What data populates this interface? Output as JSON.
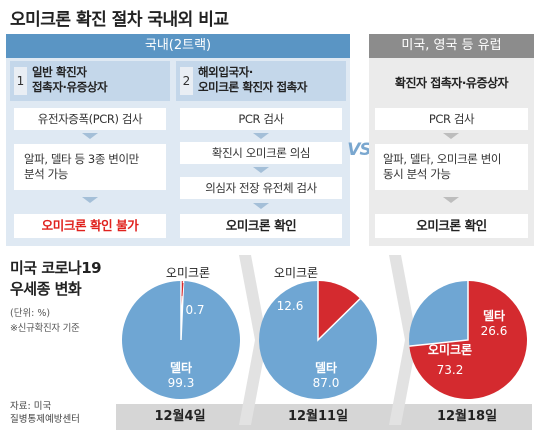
{
  "title": "오미크론 확진 절차 국내외 비교",
  "domestic": {
    "header": "국내(2트랙)",
    "track1": {
      "num": "1",
      "label": "일반 확진자\n접촉자·유증상자"
    },
    "track2": {
      "num": "2",
      "label": "해외입국자·\n오미크론 확진자 접촉자"
    },
    "t1_step1": "유전자증폭(PCR) 검사",
    "t1_step2": "알파, 델타 등 3종 변이만\n분석 가능",
    "t1_result": "오미크론 확인 불가",
    "t2_step1": "PCR 검사",
    "t2_step2": "확진시 오미크론 의심",
    "t2_step3": "의심자 전장 유전체 검사",
    "t2_result": "오미크론 확인"
  },
  "vs": "VS",
  "foreign": {
    "header": "미국, 영국 등 유럽",
    "group": "확진자 접촉자·유증상자",
    "step1": "PCR 검사",
    "step2": "알파, 델타, 오미크론 변이\n동시 분석 가능",
    "result": "오미크론 확인"
  },
  "variant_title": "미국 코로나19\n우세종 변화",
  "unit": "(단위: %)",
  "basis": "※신규확진자 기준",
  "source": "자료: 미국\n질병통제예방센터",
  "colors": {
    "delta": "#6fa6d3",
    "omicron": "#d42a2f",
    "domestic_header": "#5a95c4",
    "foreign_header": "#8c8c8c",
    "warn_text": "#e0221e"
  },
  "chart_data": {
    "type": "pie",
    "unit": "%",
    "categories": [
      "12월4일",
      "12월11일",
      "12월18일"
    ],
    "series": [
      {
        "name": "델타",
        "values": [
          99.3,
          87.0,
          26.6
        ]
      },
      {
        "name": "오미크론",
        "values": [
          0.7,
          12.6,
          73.2
        ]
      }
    ],
    "delta_labels": [
      "99.3",
      "87.0",
      "26.6"
    ],
    "omicron_labels": [
      "0.7",
      "12.6",
      "73.2"
    ]
  }
}
